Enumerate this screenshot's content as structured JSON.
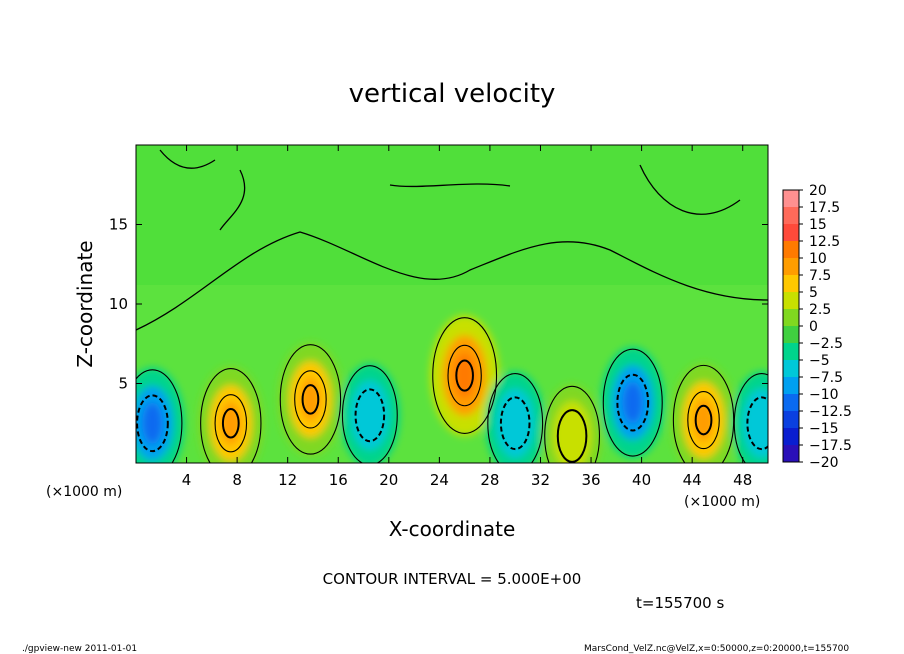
{
  "chart_data": {
    "type": "heatmap",
    "title": "vertical velocity",
    "xlabel": "X-coordinate",
    "ylabel": "Z-coordinate",
    "x_multiplier": "(×1000 m)",
    "y_multiplier": "(×1000 m)",
    "xlim": [
      0,
      50
    ],
    "ylim": [
      0,
      20
    ],
    "x_ticks": [
      "4",
      "8",
      "12",
      "16",
      "20",
      "24",
      "28",
      "32",
      "36",
      "40",
      "44",
      "48"
    ],
    "y_ticks": [
      "5",
      "10",
      "15"
    ],
    "colorbar_labels": [
      "20",
      "17.5",
      "15",
      "12.5",
      "10",
      "7.5",
      "5",
      "2.5",
      "0",
      "−2.5",
      "−5",
      "−7.5",
      "−10",
      "−12.5",
      "−15",
      "−17.5",
      "−20"
    ],
    "colorbar_colors": [
      "#ff9090",
      "#ff6a5a",
      "#ff4a3a",
      "#ff7a00",
      "#ff9d00",
      "#ffc800",
      "#c8e000",
      "#80d820",
      "#40d040",
      "#00d48c",
      "#00c8d8",
      "#00a0f0",
      "#0a6af0",
      "#0a40e0",
      "#0a1ed0",
      "#2a10b8",
      "#6a10b0"
    ],
    "contour_interval": "CONTOUR INTERVAL = 5.000E+00",
    "time_label": "t=155700 s",
    "cells": [
      {
        "x": 1.3,
        "z": 2.5,
        "w": -9
      },
      {
        "x": 7.5,
        "z": 2.5,
        "w": 10
      },
      {
        "x": 13.8,
        "z": 4.0,
        "w": 10
      },
      {
        "x": 18.5,
        "z": 3.0,
        "w": -6
      },
      {
        "x": 26.0,
        "z": 5.5,
        "w": 12.5
      },
      {
        "x": 30.0,
        "z": 2.5,
        "w": -6
      },
      {
        "x": 34.5,
        "z": 1.7,
        "w": 6
      },
      {
        "x": 39.3,
        "z": 3.8,
        "w": -9
      },
      {
        "x": 44.9,
        "z": 2.7,
        "w": 10
      },
      {
        "x": 49.5,
        "z": 2.5,
        "w": -6
      }
    ]
  },
  "footer": {
    "left": "./gpview-new   2011-01-01",
    "right": "MarsCond_VelZ.nc@VelZ,x=0:50000,z=0:20000,t=155700"
  }
}
